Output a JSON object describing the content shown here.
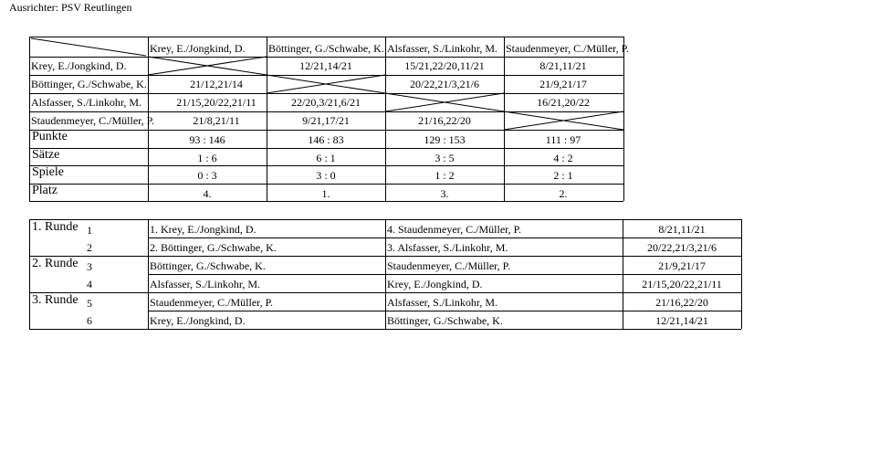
{
  "organizer": "Ausrichter: PSV Reutlingen",
  "matrix": {
    "players": [
      "Krey, E./Jongkind, D.",
      "Böttinger, G./Schwabe, K.",
      "Alsfasser, S./Linkohr, M.",
      "Staudenmeyer, C./Müller, P."
    ],
    "results": [
      [
        "",
        "12/21,14/21",
        "15/21,22/20,11/21",
        "8/21,11/21"
      ],
      [
        "21/12,21/14",
        "",
        "20/22,21/3,21/6",
        "21/9,21/17"
      ],
      [
        "21/15,20/22,21/11",
        "22/20,3/21,6/21",
        "",
        "16/21,20/22"
      ],
      [
        "21/8,21/11",
        "9/21,17/21",
        "21/16,22/20",
        ""
      ]
    ],
    "summary": [
      {
        "label": "Punkte",
        "values": [
          "93 : 146",
          "146 : 83",
          "129 : 153",
          "111 : 97"
        ]
      },
      {
        "label": "Sätze",
        "values": [
          "1 : 6",
          "6 : 1",
          "3 : 5",
          "4 : 2"
        ]
      },
      {
        "label": "Spiele",
        "values": [
          "0 : 3",
          "3 : 0",
          "1 : 2",
          "2 : 1"
        ]
      },
      {
        "label": "Platz",
        "values": [
          "4.",
          "1.",
          "3.",
          "2."
        ]
      }
    ]
  },
  "schedule": [
    {
      "round": "1. Runde",
      "games": [
        {
          "no": "1",
          "home": "1. Krey, E./Jongkind, D.",
          "away": "4. Staudenmeyer, C./Müller, P.",
          "score": "8/21,11/21"
        },
        {
          "no": "2",
          "home": "2. Böttinger, G./Schwabe, K.",
          "away": "3. Alsfasser, S./Linkohr, M.",
          "score": "20/22,21/3,21/6"
        }
      ]
    },
    {
      "round": "2. Runde",
      "games": [
        {
          "no": "3",
          "home": "Böttinger, G./Schwabe, K.",
          "away": "Staudenmeyer, C./Müller, P.",
          "score": "21/9,21/17"
        },
        {
          "no": "4",
          "home": "Alsfasser, S./Linkohr, M.",
          "away": "Krey, E./Jongkind, D.",
          "score": "21/15,20/22,21/11"
        }
      ]
    },
    {
      "round": "3. Runde",
      "games": [
        {
          "no": "5",
          "home": "Staudenmeyer, C./Müller, P.",
          "away": "Alsfasser, S./Linkohr, M.",
          "score": "21/16,22/20"
        },
        {
          "no": "6",
          "home": "Krey, E./Jongkind, D.",
          "away": "Böttinger, G./Schwabe, K.",
          "score": "12/21,14/21"
        }
      ]
    }
  ]
}
